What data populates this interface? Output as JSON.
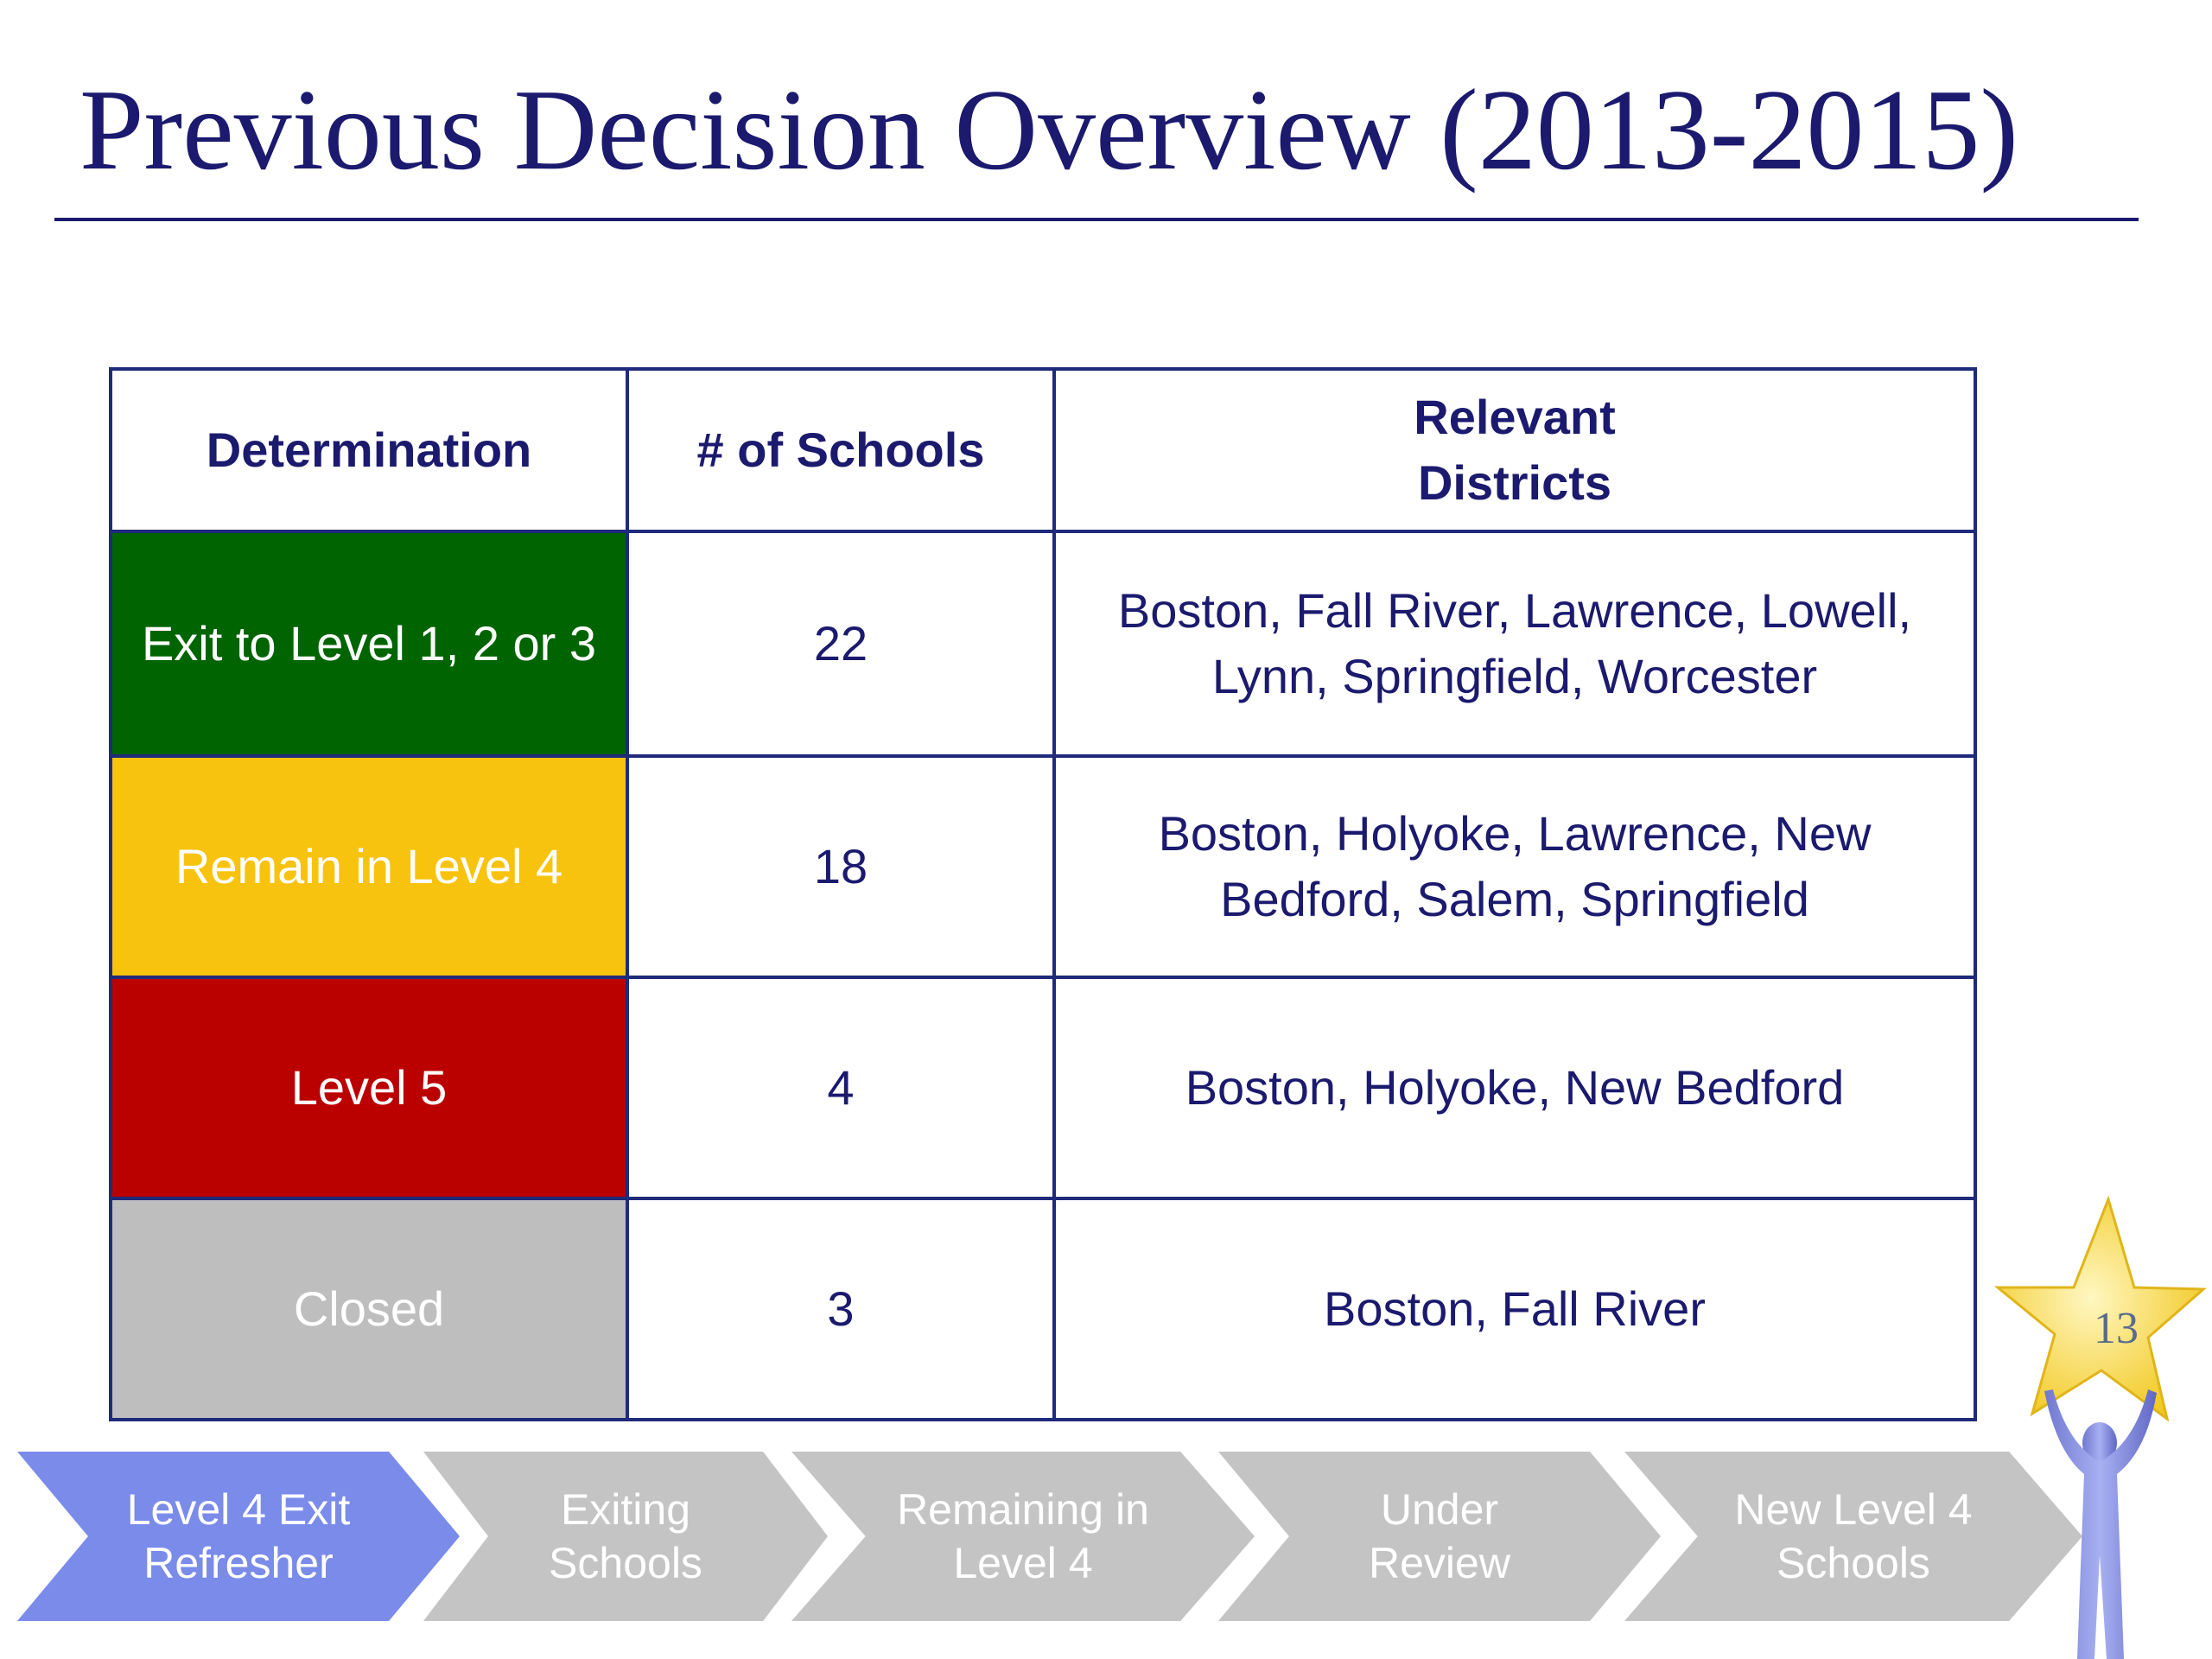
{
  "slide": {
    "title": "Previous Decision Overview (2013-2015)",
    "page_number": "13"
  },
  "table": {
    "headers": {
      "determination": "Determination",
      "schools": "# of Schools",
      "districts_line1": "Relevant",
      "districts_line2": "Districts"
    },
    "rows": [
      {
        "determination": "Exit to Level 1, 2 or 3",
        "schools": "22",
        "districts_line1": "Boston, Fall River, Lawrence, Lowell,",
        "districts_line2": "Lynn, Springfield, Worcester",
        "color": "#006400"
      },
      {
        "determination": "Remain in Level 4",
        "schools": "18",
        "districts_line1": "Boston, Holyoke, Lawrence, New",
        "districts_line2": "Bedford, Salem, Springfield",
        "color": "#f8c30e"
      },
      {
        "determination": "Level 5",
        "schools": "4",
        "districts_line1": "Boston, Holyoke, New Bedford",
        "districts_line2": "",
        "color": "#bb0000"
      },
      {
        "determination": "Closed",
        "schools": "3",
        "districts_line1": "Boston, Fall River",
        "districts_line2": "",
        "color": "#bebebe"
      }
    ]
  },
  "process_steps": [
    {
      "line1": "Level 4 Exit",
      "line2": "Refresher",
      "state": "active"
    },
    {
      "line1": "Exiting",
      "line2": "Schools",
      "state": "inactive"
    },
    {
      "line1": "Remaining in",
      "line2": "Level 4",
      "state": "inactive"
    },
    {
      "line1": "Under",
      "line2": "Review",
      "state": "inactive"
    },
    {
      "line1": "New Level 4",
      "line2": "Schools",
      "state": "inactive"
    }
  ],
  "colors": {
    "title_navy": "#1b1a6e",
    "active_step": "#7a8bea",
    "inactive_step": "#c4c4c4",
    "star": "#f6d84a",
    "figure": "#7e86d6"
  }
}
